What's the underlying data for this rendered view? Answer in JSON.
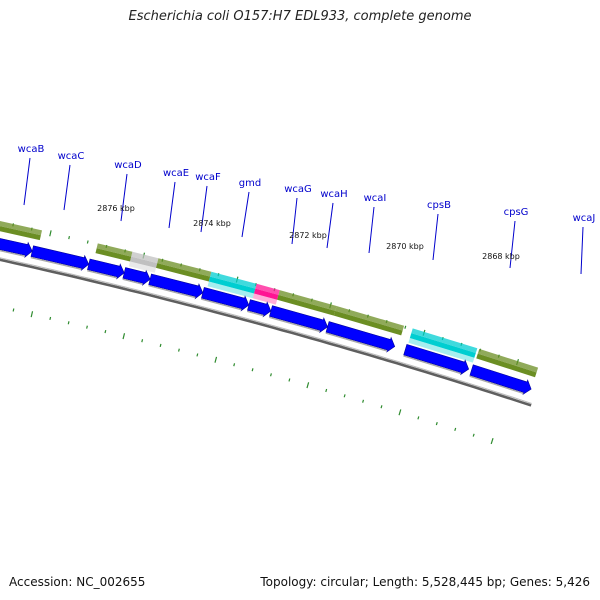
{
  "title": "Escherichia coli O157:H7 EDL933, complete genome",
  "footer": {
    "accession": "Accession: NC_002655",
    "summary": "Topology: circular; Length: 5,528,445 bp; Genes: 5,426"
  },
  "gene_labels": [
    "wcaB",
    "wcaC",
    "wcaD",
    "wcaE",
    "wcaF",
    "gmd",
    "wcaG",
    "wcaH",
    "wcaI",
    "cpsB",
    "cpsG",
    "wcaJ"
  ],
  "kbp_labels": [
    "2876 kbp",
    "2874 kbp",
    "2872 kbp",
    "2870 kbp",
    "2868 kbp"
  ],
  "colors": {
    "cds_arrow": "#0000ff",
    "cog_olive": "#6b8e23",
    "cog_grey": "#c0c0c0",
    "cog_cyan": "#00ced1",
    "cog_pink": "#ff1493",
    "cog_steelblue": "#5b8fc9",
    "backbone": "#888888",
    "ticks": "#2e8b2e",
    "gene_label": "#0000cc"
  }
}
